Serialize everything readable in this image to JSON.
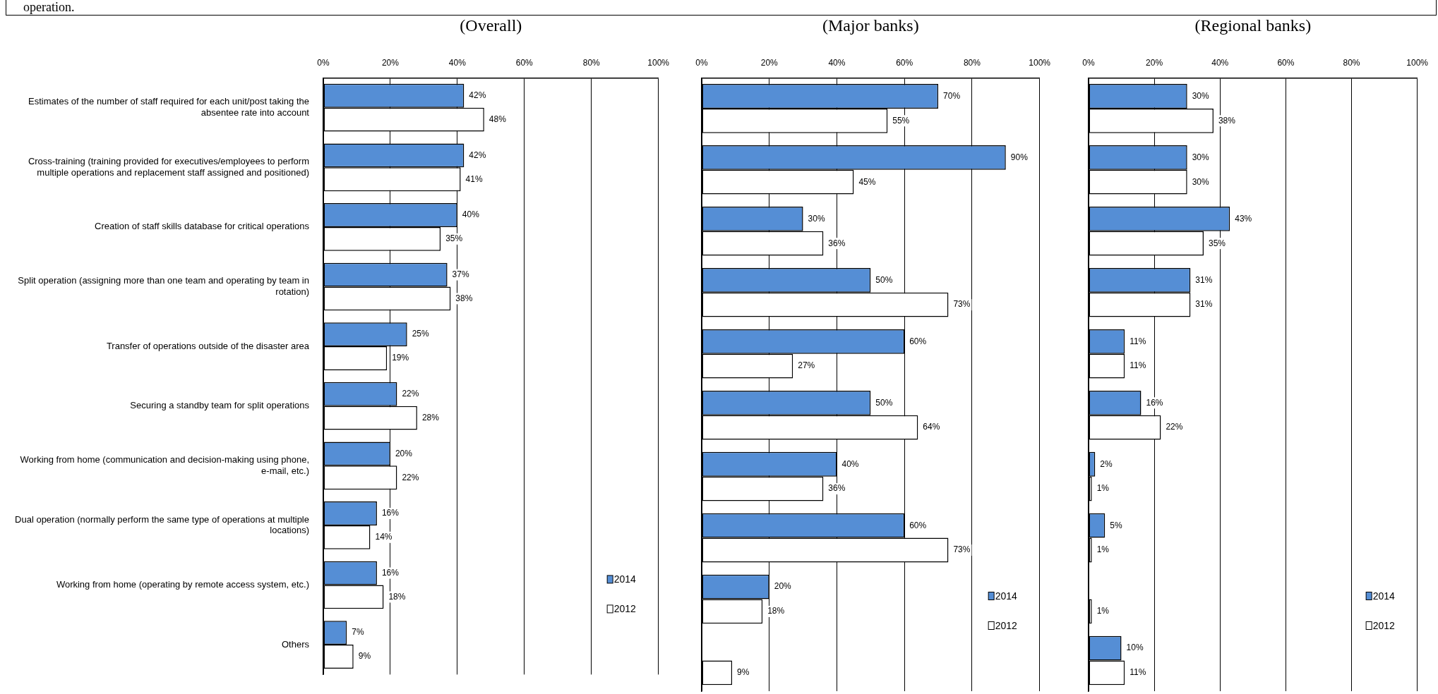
{
  "chart_data": [
    {
      "type": "bar",
      "orientation": "horizontal",
      "title": "(Overall)",
      "annotations": [
        "operation."
      ],
      "categories": [
        "Estimates of the number of staff required for each unit/post taking the absentee rate into account",
        "Cross-training (training provided for executives/employees to perform multiple operations and replacement staff assigned and positioned)",
        "Creation of staff skills database for critical operations",
        "Split operation (assigning more than one team and operating by team in rotation)",
        "Transfer of operations outside of the disaster area",
        "Securing a standby team for split operations",
        "Working from home (communication and decision-making using phone, e-mail, etc.)",
        "Dual operation (normally perform the same type of operations at multiple locations)",
        "Working from home (operating by remote access system, etc.)",
        "Others"
      ],
      "series": [
        {
          "name": "2014",
          "color": "#558ed5",
          "values": [
            42,
            42,
            40,
            37,
            25,
            22,
            20,
            16,
            16,
            7
          ],
          "value_labels": [
            "42%",
            "42%",
            "40%",
            "37%",
            "25%",
            "22%",
            "20%",
            "16%",
            "16%",
            "7%"
          ]
        },
        {
          "name": "2012",
          "color": "#ffffff",
          "values": [
            48,
            41,
            35,
            38,
            19,
            28,
            22,
            14,
            18,
            9
          ],
          "value_labels": [
            "48%",
            "41%",
            "35%",
            "38%",
            "19%",
            "28%",
            "22%",
            "14%",
            "18%",
            "9%"
          ]
        }
      ],
      "xlim": [
        0,
        100
      ],
      "xticks": [
        {
          "value": 0,
          "label": "0%"
        },
        {
          "value": 20,
          "label": "20%"
        },
        {
          "value": 40,
          "label": "40%"
        },
        {
          "value": 60,
          "label": "60%"
        },
        {
          "value": 80,
          "label": "80%"
        },
        {
          "value": 100,
          "label": "100%"
        }
      ],
      "grid": "x",
      "legend": "bottom right"
    },
    {
      "type": "bar",
      "orientation": "horizontal",
      "title": "(Major banks)",
      "categories": [
        null,
        null,
        null,
        null,
        null,
        null,
        null,
        null,
        null,
        null
      ],
      "series": [
        {
          "name": "2014",
          "color": "#558ed5",
          "values": [
            70,
            90,
            30,
            50,
            60,
            50,
            40,
            60,
            20,
            null
          ],
          "value_labels": [
            "70%",
            "90%",
            "30%",
            "50%",
            "60%",
            "50%",
            "40%",
            "60%",
            "20%",
            null
          ]
        },
        {
          "name": "2012",
          "color": "#ffffff",
          "values": [
            55,
            45,
            36,
            73,
            27,
            64,
            36,
            73,
            18,
            9
          ],
          "value_labels": [
            "55%",
            "45%",
            "36%",
            "73%",
            "27%",
            "64%",
            "36%",
            "73%",
            "18%",
            "9%"
          ]
        }
      ],
      "xlim": [
        0,
        100
      ],
      "xticks": [
        {
          "value": 0,
          "label": "0%"
        },
        {
          "value": 20,
          "label": "20%"
        },
        {
          "value": 40,
          "label": "40%"
        },
        {
          "value": 60,
          "label": "60%"
        },
        {
          "value": 80,
          "label": "80%"
        },
        {
          "value": 100,
          "label": "100%"
        }
      ],
      "grid": "x",
      "legend": "bottom right",
      "tick_labels": "x"
    },
    {
      "type": "bar",
      "orientation": "horizontal",
      "title": "(Regional banks)",
      "categories": [
        null,
        null,
        null,
        null,
        null,
        null,
        null,
        null,
        null,
        null
      ],
      "series": [
        {
          "name": "2014",
          "color": "#558ed5",
          "values": [
            30,
            30,
            43,
            31,
            11,
            16,
            2,
            5,
            null,
            10
          ],
          "value_labels": [
            "30%",
            "30%",
            "43%",
            "31%",
            "11%",
            "16%",
            "2%",
            "5%",
            null,
            "10%"
          ]
        },
        {
          "name": "2012",
          "color": "#ffffff",
          "values": [
            38,
            30,
            35,
            31,
            11,
            22,
            1,
            1,
            1,
            11
          ],
          "value_labels": [
            "38%",
            "30%",
            "35%",
            "31%",
            "11%",
            "22%",
            "1%",
            "1%",
            "1%",
            "11%"
          ]
        }
      ],
      "xlim": [
        0,
        100
      ],
      "xticks": [
        {
          "value": 0,
          "label": "0%"
        },
        {
          "value": 20,
          "label": "20%"
        },
        {
          "value": 40,
          "label": "40%"
        },
        {
          "value": 60,
          "label": "60%"
        },
        {
          "value": 80,
          "label": "80%"
        },
        {
          "value": 100,
          "label": "100%"
        }
      ],
      "grid": "x",
      "legend": "bottom right",
      "tick_labels": "x"
    }
  ]
}
